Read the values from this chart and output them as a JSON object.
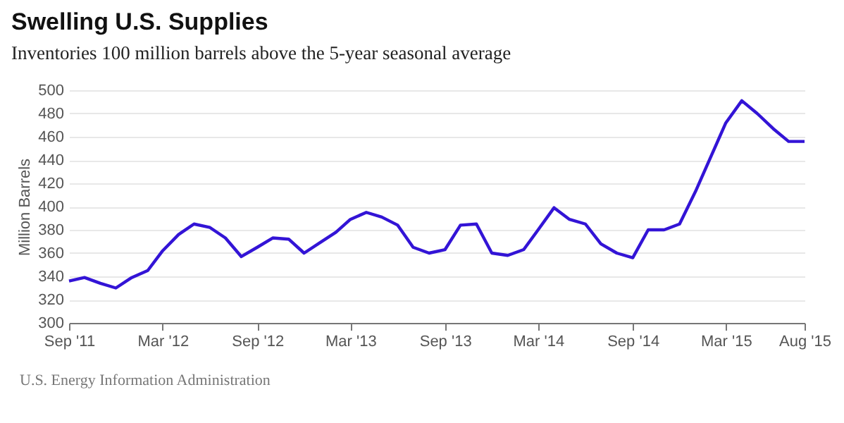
{
  "chart_data": {
    "type": "line",
    "title": "Swelling U.S. Supplies",
    "subtitle": "Inventories 100 million barrels above the 5-year seasonal average",
    "ylabel": "Million Barrels",
    "annotations": [
      "U.S. Energy Information Administration"
    ],
    "x": [
      "2011-09",
      "2011-10",
      "2011-11",
      "2011-12",
      "2012-01",
      "2012-02",
      "2012-03",
      "2012-04",
      "2012-05",
      "2012-06",
      "2012-07",
      "2012-08",
      "2012-09",
      "2012-10",
      "2012-11",
      "2012-12",
      "2013-01",
      "2013-02",
      "2013-03",
      "2013-04",
      "2013-05",
      "2013-06",
      "2013-07",
      "2013-08",
      "2013-09",
      "2013-10",
      "2013-11",
      "2013-12",
      "2014-01",
      "2014-02",
      "2014-03",
      "2014-04",
      "2014-05",
      "2014-06",
      "2014-07",
      "2014-08",
      "2014-09",
      "2014-10",
      "2014-11",
      "2014-12",
      "2015-01",
      "2015-02",
      "2015-03",
      "2015-04",
      "2015-05",
      "2015-06",
      "2015-07",
      "2015-08"
    ],
    "series": [
      {
        "color": "#3314d6",
        "values": [
          336,
          339,
          334,
          330,
          339,
          345,
          362,
          376,
          385,
          382,
          373,
          357,
          365,
          373,
          372,
          360,
          369,
          378,
          389,
          395,
          391,
          384,
          365,
          360,
          363,
          384,
          385,
          360,
          358,
          363,
          380,
          399,
          389,
          385,
          368,
          360,
          356,
          380,
          380,
          385,
          413,
          444,
          472,
          491,
          480,
          467,
          456,
          456
        ]
      }
    ],
    "xlim": [
      "2011-09",
      "2015-08"
    ],
    "xticks": [
      {
        "value": "2011-09",
        "label": "Sep '11"
      },
      {
        "value": "2012-03",
        "label": "Mar '12"
      },
      {
        "value": "2012-09",
        "label": "Sep '12"
      },
      {
        "value": "2013-03",
        "label": "Mar '13"
      },
      {
        "value": "2013-09",
        "label": "Sep '13"
      },
      {
        "value": "2014-03",
        "label": "Mar '14"
      },
      {
        "value": "2014-09",
        "label": "Sep '14"
      },
      {
        "value": "2015-03",
        "label": "Mar '15"
      },
      {
        "value": "2015-08",
        "label": "Aug '15"
      }
    ],
    "ylim": [
      300,
      500
    ],
    "yticks": [
      300,
      320,
      340,
      360,
      380,
      400,
      420,
      440,
      460,
      480,
      500
    ],
    "grid": "y",
    "marker": "none",
    "line_style": "solid"
  }
}
